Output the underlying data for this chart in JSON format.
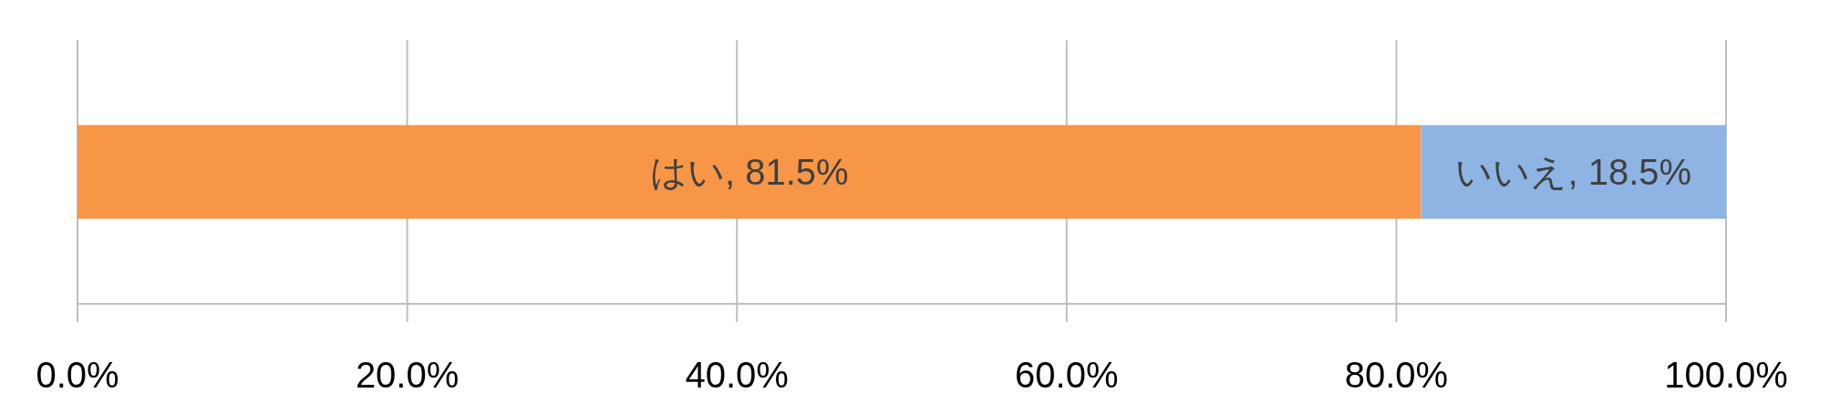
{
  "chart_data": {
    "type": "bar",
    "orientation": "horizontal",
    "stacked": true,
    "categories": [
      null
    ],
    "series": [
      {
        "color": "#f79646",
        "values": [
          81.5
        ],
        "value_labels": [
          "はい, 81.5%"
        ]
      },
      {
        "color": "#8eb4e3",
        "values": [
          18.5
        ],
        "value_labels": [
          "いいえ, 18.5%"
        ]
      }
    ],
    "xlim": [
      0,
      100
    ],
    "xticks": [
      {
        "value": 0,
        "label": "0.0%"
      },
      {
        "value": 20,
        "label": "20.0%"
      },
      {
        "value": 40,
        "label": "40.0%"
      },
      {
        "value": 60,
        "label": "60.0%"
      },
      {
        "value": 80,
        "label": "80.0%"
      },
      {
        "value": 100,
        "label": "100.0%"
      }
    ],
    "grid": "x"
  }
}
